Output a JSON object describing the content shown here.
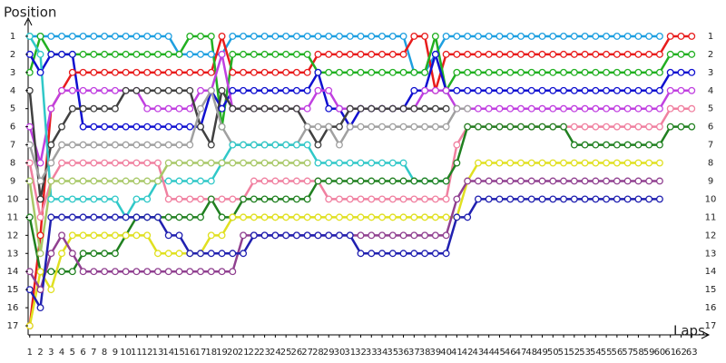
{
  "chart_data": {
    "type": "line",
    "y_label": "Position",
    "x_label": "Laps",
    "x": [
      1,
      2,
      3,
      4,
      5,
      6,
      7,
      8,
      9,
      10,
      11,
      12,
      13,
      14,
      15,
      16,
      17,
      18,
      19,
      20,
      21,
      22,
      23,
      24,
      25,
      26,
      27,
      28,
      29,
      30,
      31,
      32,
      33,
      34,
      35,
      36,
      37,
      38,
      39,
      40,
      41,
      42,
      43,
      44,
      45,
      46,
      47,
      48,
      49,
      50,
      51,
      52,
      53,
      54,
      55,
      56,
      57,
      58,
      59,
      60,
      61,
      62,
      63
    ],
    "xlim": [
      0.85,
      64
    ],
    "xticks": [
      1,
      2,
      3,
      4,
      5,
      6,
      7,
      8,
      9,
      10,
      11,
      12,
      13,
      14,
      15,
      16,
      17,
      18,
      19,
      20,
      21,
      22,
      23,
      24,
      25,
      26,
      27,
      28,
      29,
      30,
      31,
      32,
      33,
      34,
      35,
      36,
      37,
      38,
      39,
      40,
      41,
      42,
      43,
      44,
      45,
      46,
      47,
      48,
      49,
      50,
      51,
      52,
      53,
      54,
      55,
      56,
      57,
      58,
      59,
      60,
      61,
      62,
      63
    ],
    "ylim": [
      17.5,
      0
    ],
    "yticks": [
      1,
      2,
      3,
      4,
      5,
      6,
      7,
      8,
      9,
      10,
      11,
      12,
      13,
      14,
      15,
      16,
      17
    ],
    "series": [
      {
        "color": "#1e9fe0",
        "values": [
          1,
          1,
          1,
          1,
          1,
          1,
          1,
          1,
          1,
          1,
          1,
          1,
          1,
          1,
          2,
          2,
          2,
          2,
          2,
          1,
          1,
          1,
          1,
          1,
          1,
          1,
          1,
          1,
          1,
          1,
          1,
          1,
          1,
          1,
          1,
          1,
          3,
          3,
          2,
          1,
          1,
          1,
          1,
          1,
          1,
          1,
          1,
          1,
          1,
          1,
          1,
          1,
          1,
          1,
          1,
          1,
          1,
          1,
          1,
          1,
          null,
          null,
          null
        ]
      },
      {
        "color": "#e81c1c",
        "values": [
          17,
          12,
          5,
          4,
          3,
          3,
          3,
          3,
          3,
          3,
          3,
          3,
          3,
          3,
          3,
          3,
          3,
          3,
          1,
          3,
          3,
          3,
          3,
          3,
          3,
          3,
          3,
          2,
          2,
          2,
          2,
          2,
          2,
          2,
          2,
          2,
          1,
          1,
          4,
          2,
          2,
          2,
          2,
          2,
          2,
          2,
          2,
          2,
          2,
          2,
          2,
          2,
          2,
          2,
          2,
          2,
          2,
          2,
          2,
          2,
          1,
          1,
          1
        ]
      },
      {
        "color": "#22b022",
        "values": [
          3,
          1,
          2,
          2,
          2,
          2,
          2,
          2,
          2,
          2,
          2,
          2,
          2,
          2,
          2,
          1,
          1,
          1,
          6,
          2,
          2,
          2,
          2,
          2,
          2,
          2,
          2,
          3,
          3,
          3,
          3,
          3,
          3,
          3,
          3,
          3,
          3,
          3,
          1,
          4,
          3,
          3,
          3,
          3,
          3,
          3,
          3,
          3,
          3,
          3,
          3,
          3,
          3,
          3,
          3,
          3,
          3,
          3,
          3,
          3,
          2,
          2,
          2
        ]
      },
      {
        "color": "#1010d0",
        "values": [
          2,
          3,
          2,
          2,
          2,
          6,
          6,
          6,
          6,
          6,
          6,
          6,
          6,
          6,
          6,
          6,
          6,
          4,
          5,
          4,
          4,
          4,
          4,
          4,
          4,
          4,
          4,
          3,
          5,
          5,
          6,
          5,
          5,
          5,
          5,
          5,
          4,
          4,
          2,
          4,
          4,
          4,
          4,
          4,
          4,
          4,
          4,
          4,
          4,
          4,
          4,
          4,
          4,
          4,
          4,
          4,
          4,
          4,
          4,
          4,
          3,
          3,
          3
        ]
      },
      {
        "color": "#c040e0",
        "values": [
          6,
          8,
          5,
          4,
          4,
          4,
          4,
          4,
          4,
          4,
          4,
          5,
          5,
          5,
          5,
          5,
          4,
          4,
          2,
          5,
          5,
          5,
          5,
          5,
          5,
          5,
          5,
          4,
          4,
          5,
          5,
          5,
          5,
          5,
          5,
          5,
          5,
          4,
          4,
          4,
          5,
          5,
          5,
          5,
          5,
          5,
          5,
          5,
          5,
          5,
          5,
          5,
          5,
          5,
          5,
          5,
          5,
          5,
          5,
          5,
          4,
          4,
          4
        ]
      },
      {
        "color": "#404040",
        "values": [
          4,
          10,
          7,
          6,
          5,
          5,
          5,
          5,
          5,
          4,
          4,
          4,
          4,
          4,
          4,
          4,
          6,
          7,
          4,
          5,
          5,
          5,
          5,
          5,
          5,
          5,
          6,
          7,
          6,
          6,
          5,
          5,
          5,
          5,
          5,
          5,
          5,
          5,
          5,
          5,
          null,
          null,
          null,
          null,
          null,
          null,
          null,
          null,
          null,
          null,
          null,
          null,
          null,
          null,
          null,
          null,
          null,
          null,
          null,
          null,
          null,
          null,
          null
        ]
      },
      {
        "color": "#a0a0a0",
        "values": [
          7,
          9,
          8,
          7,
          7,
          7,
          7,
          7,
          7,
          7,
          7,
          7,
          7,
          7,
          7,
          7,
          5,
          4,
          6,
          7,
          7,
          7,
          7,
          7,
          7,
          7,
          6,
          6,
          6,
          7,
          6,
          6,
          6,
          6,
          6,
          6,
          6,
          6,
          6,
          6,
          5,
          5,
          null,
          null,
          null,
          null,
          null,
          null,
          null,
          null,
          null,
          null,
          null,
          null,
          null,
          null,
          null,
          null,
          null,
          null,
          null,
          null,
          null
        ]
      },
      {
        "color": "#30c8c8",
        "values": [
          1,
          2,
          10,
          10,
          10,
          10,
          10,
          10,
          10,
          11,
          10,
          10,
          9,
          9,
          9,
          9,
          9,
          9,
          8,
          7,
          7,
          7,
          7,
          7,
          7,
          7,
          7,
          8,
          8,
          8,
          8,
          8,
          8,
          8,
          8,
          8,
          9,
          9,
          9,
          9,
          null,
          null,
          null,
          null,
          null,
          null,
          null,
          null,
          null,
          null,
          null,
          null,
          null,
          null,
          null,
          null,
          null,
          null,
          null,
          null,
          null,
          null,
          null
        ]
      },
      {
        "color": "#f080a0",
        "values": [
          8,
          11,
          9,
          8,
          8,
          8,
          8,
          8,
          8,
          8,
          8,
          8,
          8,
          10,
          10,
          10,
          10,
          10,
          10,
          10,
          10,
          9,
          9,
          9,
          9,
          9,
          9,
          9,
          10,
          10,
          10,
          10,
          10,
          10,
          10,
          10,
          10,
          10,
          10,
          10,
          7,
          6,
          6,
          6,
          6,
          6,
          6,
          6,
          6,
          6,
          6,
          6,
          6,
          6,
          6,
          6,
          6,
          6,
          6,
          6,
          5,
          5,
          5
        ]
      },
      {
        "color": "#208020",
        "values": [
          11,
          14,
          14,
          14,
          14,
          13,
          13,
          13,
          13,
          12,
          11,
          11,
          11,
          11,
          11,
          11,
          11,
          10,
          11,
          11,
          10,
          10,
          10,
          10,
          10,
          10,
          10,
          9,
          9,
          9,
          9,
          9,
          9,
          9,
          9,
          9,
          9,
          9,
          9,
          9,
          8,
          6,
          6,
          6,
          6,
          6,
          6,
          6,
          6,
          6,
          6,
          7,
          7,
          7,
          7,
          7,
          7,
          7,
          7,
          7,
          6,
          6,
          6
        ]
      },
      {
        "color": "#e0e020",
        "values": [
          17,
          14,
          15,
          13,
          12,
          12,
          12,
          12,
          12,
          12,
          12,
          12,
          13,
          13,
          13,
          13,
          13,
          12,
          12,
          11,
          11,
          11,
          11,
          11,
          11,
          11,
          11,
          11,
          11,
          11,
          11,
          11,
          11,
          11,
          11,
          11,
          11,
          11,
          11,
          11,
          11,
          9,
          8,
          8,
          8,
          8,
          8,
          8,
          8,
          8,
          8,
          8,
          8,
          8,
          8,
          8,
          8,
          8,
          8,
          8,
          null,
          null,
          null
        ]
      },
      {
        "color": "#904090",
        "values": [
          14,
          15,
          13,
          12,
          13,
          14,
          14,
          14,
          14,
          14,
          14,
          14,
          14,
          14,
          14,
          14,
          14,
          14,
          14,
          14,
          12,
          12,
          12,
          12,
          12,
          12,
          12,
          12,
          12,
          12,
          12,
          12,
          12,
          12,
          12,
          12,
          12,
          12,
          12,
          12,
          10,
          9,
          9,
          9,
          9,
          9,
          9,
          9,
          9,
          9,
          9,
          9,
          9,
          9,
          9,
          9,
          9,
          9,
          9,
          9,
          null,
          null,
          null
        ]
      },
      {
        "color": "#2020b0",
        "values": [
          15,
          16,
          11,
          11,
          11,
          11,
          11,
          11,
          11,
          11,
          11,
          11,
          11,
          12,
          12,
          13,
          13,
          13,
          13,
          13,
          13,
          12,
          12,
          12,
          12,
          12,
          12,
          12,
          12,
          12,
          12,
          13,
          13,
          13,
          13,
          13,
          13,
          13,
          13,
          13,
          11,
          11,
          10,
          10,
          10,
          10,
          10,
          10,
          10,
          10,
          10,
          10,
          10,
          10,
          10,
          10,
          10,
          10,
          10,
          10,
          null,
          null,
          null
        ]
      },
      {
        "color": "#a8c868",
        "values": [
          9,
          13,
          9,
          9,
          9,
          9,
          9,
          9,
          9,
          9,
          9,
          9,
          9,
          8,
          8,
          8,
          8,
          8,
          8,
          8,
          8,
          8,
          8,
          8,
          8,
          8,
          8,
          null,
          null,
          null,
          null,
          null,
          null,
          null,
          null,
          null,
          null,
          null,
          null,
          null,
          null,
          null,
          null,
          null,
          null,
          null,
          null,
          null,
          null,
          null,
          null,
          null,
          null,
          null,
          null,
          null,
          null,
          null,
          null,
          null,
          null,
          null,
          null
        ]
      }
    ]
  }
}
